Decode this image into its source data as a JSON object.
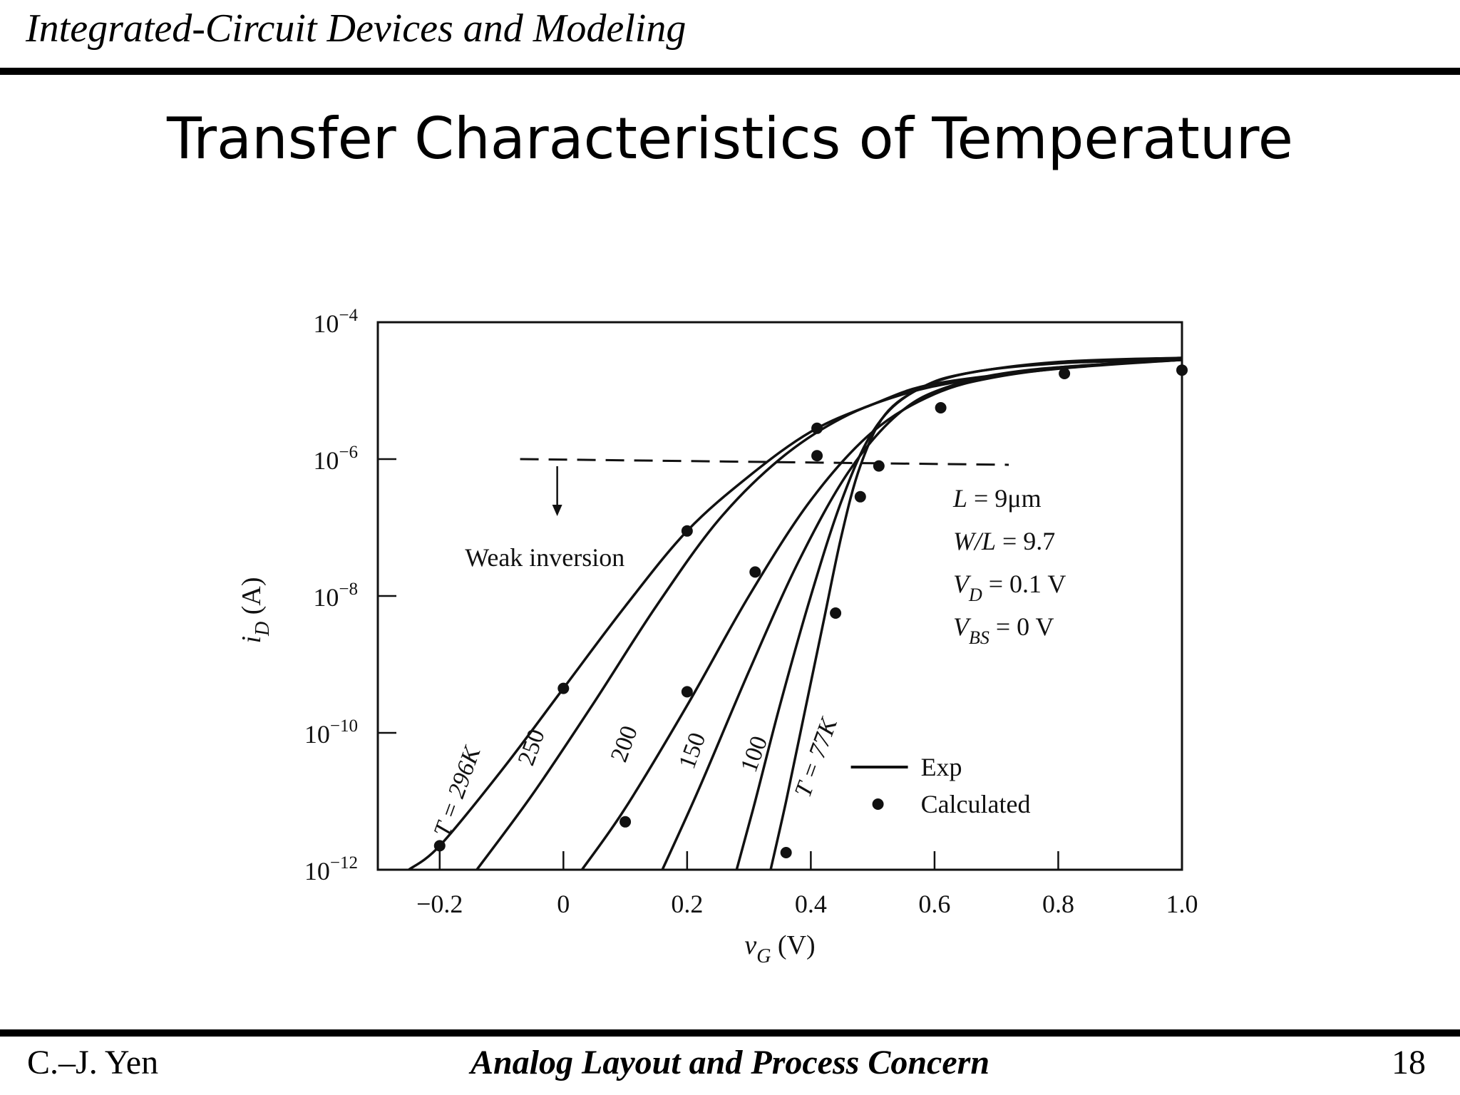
{
  "header": {
    "title": "Integrated-Circuit Devices and Modeling"
  },
  "slide": {
    "title": "Transfer Characteristics of Temperature"
  },
  "footer": {
    "author": "C.–J. Yen",
    "course": "Analog Layout and Process Concern",
    "page": "18"
  },
  "chart_data": {
    "type": "line",
    "title": "",
    "xlabel": "v",
    "xlabel_sub": "G",
    "xlabel_unit": " (V)",
    "ylabel": "i",
    "ylabel_sub": "D",
    "ylabel_unit": " (A)",
    "y_scale": "log",
    "xlim": [
      -0.3,
      1.0
    ],
    "ylim_exp": [
      -12,
      -4
    ],
    "x_ticks": [
      {
        "v": -0.2,
        "label": "−0.2"
      },
      {
        "v": 0,
        "label": "0"
      },
      {
        "v": 0.2,
        "label": "0.2"
      },
      {
        "v": 0.4,
        "label": "0.4"
      },
      {
        "v": 0.6,
        "label": "0.6"
      },
      {
        "v": 0.8,
        "label": "0.8"
      },
      {
        "v": 1.0,
        "label": "1.0"
      }
    ],
    "y_ticks": [
      {
        "exp": -4,
        "label": "10",
        "sup": "−4"
      },
      {
        "exp": -6,
        "label": "10",
        "sup": "−6"
      },
      {
        "exp": -8,
        "label": "10",
        "sup": "−8"
      },
      {
        "exp": -10,
        "label": "10",
        "sup": "−10"
      },
      {
        "exp": -12,
        "label": "10",
        "sup": "−12"
      }
    ],
    "series": [
      {
        "name": "T = 296K",
        "points": [
          [
            -0.25,
            -12
          ],
          [
            -0.2,
            -11.65
          ],
          [
            -0.1,
            -10.55
          ],
          [
            0,
            -9.35
          ],
          [
            0.1,
            -8.15
          ],
          [
            0.2,
            -7.05
          ],
          [
            0.3,
            -6.25
          ],
          [
            0.4,
            -5.6
          ],
          [
            0.5,
            -5.2
          ],
          [
            0.6,
            -4.9
          ],
          [
            0.8,
            -4.68
          ],
          [
            1.0,
            -4.55
          ]
        ]
      },
      {
        "name": "250",
        "points": [
          [
            -0.14,
            -12
          ],
          [
            -0.05,
            -10.9
          ],
          [
            0.05,
            -9.55
          ],
          [
            0.15,
            -8.15
          ],
          [
            0.25,
            -6.9
          ],
          [
            0.35,
            -6.0
          ],
          [
            0.45,
            -5.4
          ],
          [
            0.55,
            -5.05
          ],
          [
            0.65,
            -4.85
          ],
          [
            0.8,
            -4.66
          ],
          [
            1.0,
            -4.55
          ]
        ]
      },
      {
        "name": "200",
        "points": [
          [
            0.03,
            -12
          ],
          [
            0.1,
            -11.1
          ],
          [
            0.2,
            -9.6
          ],
          [
            0.3,
            -8.0
          ],
          [
            0.4,
            -6.6
          ],
          [
            0.5,
            -5.6
          ],
          [
            0.6,
            -5.05
          ],
          [
            0.7,
            -4.8
          ],
          [
            0.85,
            -4.63
          ],
          [
            1.0,
            -4.55
          ]
        ]
      },
      {
        "name": "150",
        "points": [
          [
            0.16,
            -12
          ],
          [
            0.22,
            -10.8
          ],
          [
            0.3,
            -9.1
          ],
          [
            0.38,
            -7.5
          ],
          [
            0.46,
            -6.2
          ],
          [
            0.54,
            -5.35
          ],
          [
            0.62,
            -4.95
          ],
          [
            0.75,
            -4.7
          ],
          [
            1.0,
            -4.55
          ]
        ]
      },
      {
        "name": "100",
        "points": [
          [
            0.28,
            -12
          ],
          [
            0.31,
            -11.0
          ],
          [
            0.35,
            -9.6
          ],
          [
            0.4,
            -8.0
          ],
          [
            0.45,
            -6.6
          ],
          [
            0.5,
            -5.6
          ],
          [
            0.56,
            -5.05
          ],
          [
            0.65,
            -4.75
          ],
          [
            0.8,
            -4.6
          ],
          [
            1.0,
            -4.55
          ]
        ]
      },
      {
        "name": "T = 77K",
        "points": [
          [
            0.335,
            -12
          ],
          [
            0.36,
            -11.0
          ],
          [
            0.39,
            -9.7
          ],
          [
            0.42,
            -8.4
          ],
          [
            0.45,
            -7.1
          ],
          [
            0.48,
            -6.1
          ],
          [
            0.52,
            -5.35
          ],
          [
            0.58,
            -4.95
          ],
          [
            0.65,
            -4.75
          ],
          [
            0.8,
            -4.58
          ],
          [
            1.0,
            -4.52
          ]
        ]
      }
    ],
    "calculated": [
      [
        -0.2,
        -11.65
      ],
      [
        0,
        -9.35
      ],
      [
        0.2,
        -7.05
      ],
      [
        0.41,
        -5.55
      ],
      [
        0.2,
        -9.4
      ],
      [
        0.31,
        -7.65
      ],
      [
        0.41,
        -5.95
      ],
      [
        0.1,
        -11.3
      ],
      [
        0.36,
        -11.75
      ],
      [
        0.44,
        -8.25
      ],
      [
        0.48,
        -6.55
      ],
      [
        0.51,
        -6.1
      ],
      [
        0.61,
        -5.25
      ],
      [
        0.81,
        -4.75
      ],
      [
        1.0,
        -4.7
      ]
    ],
    "curve_labels": [
      {
        "text": "T = 296K",
        "x": -0.16,
        "y": -10.9
      },
      {
        "text": "250",
        "x": -0.04,
        "y": -10.25
      },
      {
        "text": "200",
        "x": 0.11,
        "y": -10.2
      },
      {
        "text": "150",
        "x": 0.22,
        "y": -10.3
      },
      {
        "text": "100",
        "x": 0.32,
        "y": -10.35
      },
      {
        "text": "T = 77K",
        "x": 0.42,
        "y": -10.4
      }
    ],
    "threshold_line": {
      "y": -6.0,
      "x_from": -0.07,
      "x_to": 0.72
    },
    "annotation": "Weak inversion",
    "params": [
      "L = 9μm",
      "W/L = 9.7",
      "V_D = 0.1 V",
      "V_BS = 0 V"
    ],
    "legend": [
      {
        "name": "Exp",
        "marker": "line"
      },
      {
        "name": "Calculated",
        "marker": "dot"
      }
    ],
    "legend_position": "bottom-right",
    "grid": false
  }
}
